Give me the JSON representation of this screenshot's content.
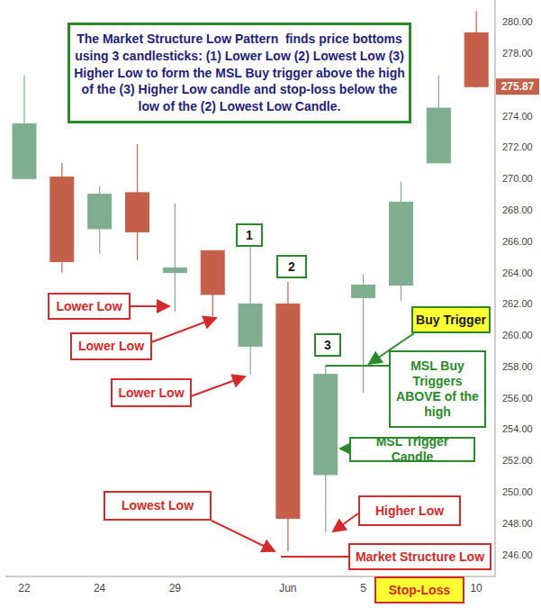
{
  "chart_data": {
    "type": "candlestick",
    "title": "The Market Structure Low Pattern  finds price bottoms using 3 candlesticks: (1) Lower Low (2) Lowest Low (3) Higher Low to form the MSL Buy trigger above the high of the (3) Higher Low candle and stop-loss below the low of the (2) Lowest Low Candle.",
    "categories": [
      "22",
      null,
      "24",
      null,
      "29",
      null,
      null,
      "Jun",
      null,
      "5",
      null,
      null,
      "10"
    ],
    "open": [
      270.0,
      270.1,
      266.8,
      269.1,
      264.0,
      265.4,
      259.3,
      262.0,
      251.1,
      262.4,
      263.2,
      271.0,
      279.3
    ],
    "high": [
      276.6,
      271.0,
      269.5,
      272.2,
      268.4,
      265.4,
      266.4,
      263.4,
      258.1,
      263.9,
      269.8,
      276.6,
      280.7
    ],
    "low": [
      270.0,
      264.0,
      265.2,
      264.8,
      261.5,
      261.2,
      257.5,
      246.2,
      247.4,
      256.3,
      262.2,
      271.0,
      275.8
    ],
    "close": [
      273.5,
      264.7,
      269.0,
      266.6,
      264.3,
      262.6,
      262.0,
      248.3,
      257.5,
      263.2,
      268.5,
      274.5,
      275.87
    ],
    "colors": [
      "#7fae8e",
      "#c4604a",
      "#7fae8e",
      "#c4604a",
      "#7fae8e",
      "#c4604a",
      "#7fae8e",
      "#c4604a",
      "#7fae8e",
      "#7fae8e",
      "#7fae8e",
      "#7fae8e",
      "#c4604a"
    ],
    "ylim": [
      244.6,
      281.4
    ],
    "yticks": [
      {
        "value": 246,
        "label": "246.00"
      },
      {
        "value": 248,
        "label": "248.00"
      },
      {
        "value": 250,
        "label": "250.00"
      },
      {
        "value": 252,
        "label": "252.00"
      },
      {
        "value": 254,
        "label": "254.00"
      },
      {
        "value": 256,
        "label": "256.00"
      },
      {
        "value": 258,
        "label": "258.00"
      },
      {
        "value": 260,
        "label": "260.00"
      },
      {
        "value": 262,
        "label": "262.00"
      },
      {
        "value": 264,
        "label": "264.00"
      },
      {
        "value": 266,
        "label": "266.00"
      },
      {
        "value": 268,
        "label": "268.00"
      },
      {
        "value": 270,
        "label": "270.00"
      },
      {
        "value": 272,
        "label": "272.00"
      },
      {
        "value": 274,
        "label": "274.00"
      },
      {
        "value": 278,
        "label": "278.00"
      },
      {
        "value": 280,
        "label": "280.00"
      }
    ],
    "grid": false,
    "last_price": 275.87,
    "annotations": {
      "lower_low": [
        "Lower Low",
        "Lower Low",
        "Lower Low"
      ],
      "lowest_low": "Lowest Low",
      "higher_low": "Higher Low",
      "market_structure_low": "Market Structure Low",
      "stop_loss": "Stop-Loss",
      "buy_trigger": "Buy Trigger",
      "msl_buy_triggers": "MSL Buy Triggers ABOVE of the high",
      "msl_trigger_candle": "MSL Trigger Candle",
      "steps": [
        "1",
        "2",
        "3"
      ]
    }
  }
}
